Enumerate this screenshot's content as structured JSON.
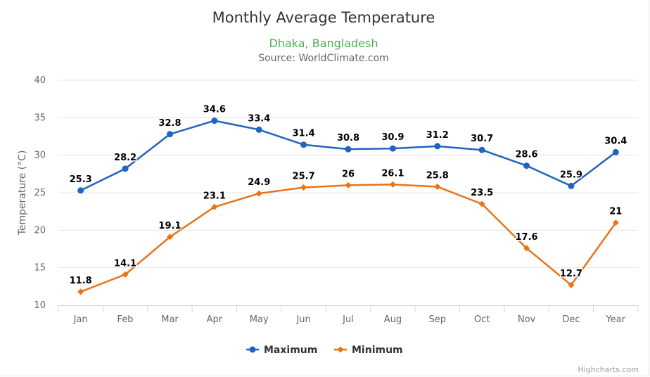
{
  "chart_data": {
    "type": "line",
    "title": "Monthly Average Temperature",
    "subtitle": "Dhaka, Bangladesh",
    "source": "Source: WorldClimate.com",
    "ylabel": "Temperature (°C)",
    "xlabel": "",
    "categories": [
      "Jan",
      "Feb",
      "Mar",
      "Apr",
      "May",
      "Jun",
      "Jul",
      "Aug",
      "Sep",
      "Oct",
      "Nov",
      "Dec",
      "Year"
    ],
    "ylim": [
      10,
      40
    ],
    "yticks": [
      10,
      15,
      20,
      25,
      30,
      35,
      40
    ],
    "grid": true,
    "legend_position": "bottom-center",
    "series": [
      {
        "name": "Maximum",
        "marker": "circle",
        "color": "#1f64c0",
        "values": [
          25.3,
          28.2,
          32.8,
          34.6,
          33.4,
          31.4,
          30.8,
          30.9,
          31.2,
          30.7,
          28.6,
          25.9,
          30.4
        ]
      },
      {
        "name": "Minimum",
        "marker": "diamond",
        "color": "#ec7214",
        "values": [
          11.8,
          14.1,
          19.1,
          23.1,
          24.9,
          25.7,
          26,
          26.1,
          25.8,
          23.5,
          17.6,
          12.7,
          21
        ]
      }
    ],
    "subtitle_color": "#4caf50",
    "credits": "Highcharts.com"
  }
}
